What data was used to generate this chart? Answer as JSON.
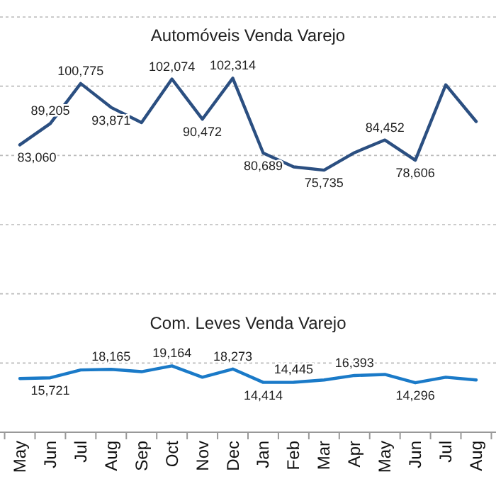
{
  "chart_data": {
    "type": "line",
    "categories": [
      "May",
      "Jun",
      "Jul",
      "Aug",
      "Sep",
      "Oct",
      "Nov",
      "Dec",
      "Jan",
      "Feb",
      "Mar",
      "Apr",
      "May",
      "Jun",
      "Jul",
      "Aug"
    ],
    "ylim": [
      0,
      120000
    ],
    "yticks": [
      {
        "value": 0,
        "label": null
      },
      {
        "value": 20000,
        "label": null
      },
      {
        "value": 40000,
        "label": null
      },
      {
        "value": 60000,
        "label": null
      },
      {
        "value": 80000,
        "label": null
      },
      {
        "value": 100000,
        "label": null
      },
      {
        "value": 120000,
        "label": null
      }
    ],
    "tick_labels": "x",
    "grid": "y",
    "series": [
      {
        "name": "Automóveis Venda Varejo",
        "color": "#2b4f81",
        "values": [
          83060,
          89205,
          100775,
          93871,
          89500,
          102074,
          90472,
          102314,
          80689,
          76700,
          75735,
          80800,
          84452,
          78606,
          100400,
          89800
        ],
        "value_labels": [
          "83,060",
          "89,205",
          "100,775",
          "93,871",
          null,
          "102,074",
          "90,472",
          "102,314",
          "80,689",
          null,
          "75,735",
          null,
          "84,452",
          "78,606",
          null,
          null
        ]
      },
      {
        "name": "Com. Leves Venda Varejo",
        "color": "#1a7ac8",
        "values": [
          15500,
          15721,
          18000,
          18165,
          17500,
          19164,
          15900,
          18273,
          14414,
          14445,
          15100,
          16393,
          16700,
          14296,
          15900,
          15100
        ],
        "value_labels": [
          null,
          "15,721",
          null,
          "18,165",
          null,
          "19,164",
          null,
          "18,273",
          "14,414",
          "14,445",
          null,
          "16,393",
          null,
          "14,296",
          null,
          null
        ]
      }
    ]
  }
}
